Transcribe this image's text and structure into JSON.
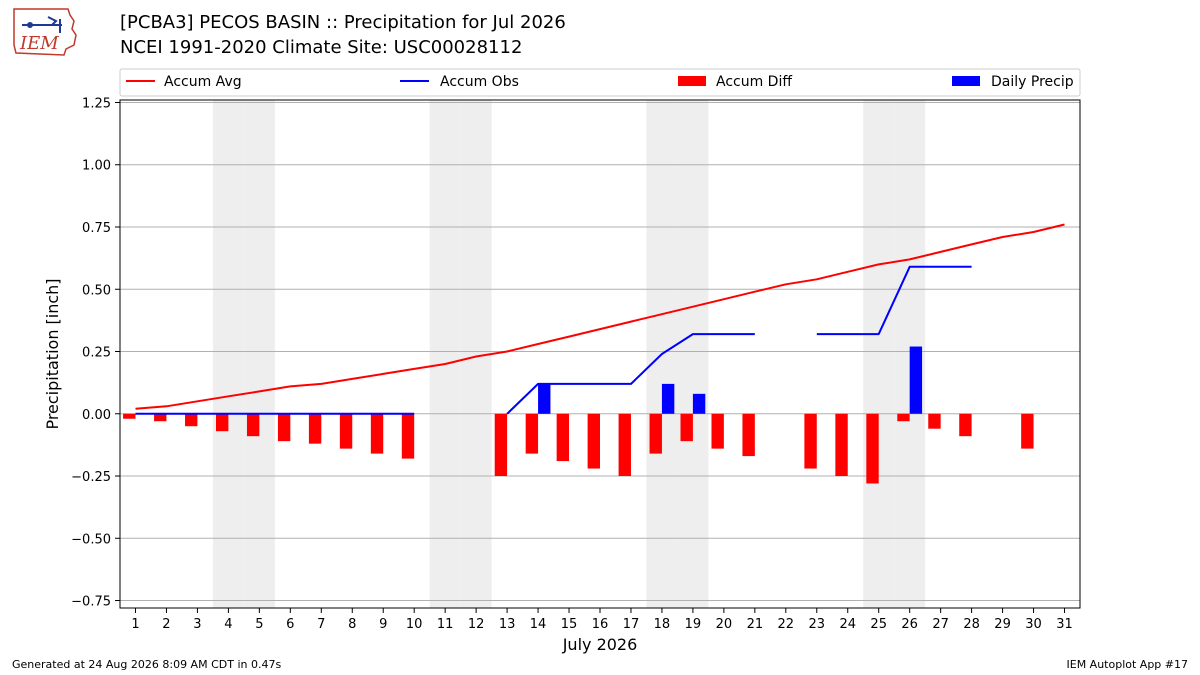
{
  "title": {
    "line1": "[PCBA3] PECOS BASIN :: Precipitation for Jul 2026",
    "line2": "NCEI 1991-2020 Climate Site: USC00028112"
  },
  "logo": {
    "text": "IEM"
  },
  "footer": {
    "left": "Generated at 24 Aug 2026 8:09 AM CDT in 0.47s",
    "right": "IEM Autoplot App #17"
  },
  "colors": {
    "avg": "#ff0000",
    "obs": "#0000ff",
    "diff": "#ff0000",
    "daily": "#0000ff",
    "weekend": "#eeeeee",
    "grid": "#b0b0b0"
  },
  "chart_data": {
    "type": "bar",
    "xlabel": "July 2026",
    "ylabel": "Precipitation [inch]",
    "xlim": [
      0.5,
      31.5
    ],
    "ylim": [
      -0.78,
      1.26
    ],
    "yticks": [
      1.25,
      1.0,
      0.75,
      0.5,
      0.25,
      0.0,
      -0.25,
      -0.5,
      -0.75
    ],
    "ytick_labels": [
      "1.25",
      "1.00",
      "0.75",
      "0.50",
      "0.25",
      "0.00",
      "−0.25",
      "−0.50",
      "−0.75"
    ],
    "days": [
      1,
      2,
      3,
      4,
      5,
      6,
      7,
      8,
      9,
      10,
      11,
      12,
      13,
      14,
      15,
      16,
      17,
      18,
      19,
      20,
      21,
      22,
      23,
      24,
      25,
      26,
      27,
      28,
      29,
      30,
      31
    ],
    "weekend_days": [
      4,
      5,
      11,
      12,
      18,
      19,
      25,
      26
    ],
    "grid": "horizontal",
    "legend_position": "top",
    "series": [
      {
        "name": "Accum Avg",
        "kind": "line",
        "values": [
          0.02,
          0.03,
          0.05,
          0.07,
          0.09,
          0.11,
          0.12,
          0.14,
          0.16,
          0.18,
          0.2,
          0.23,
          0.25,
          0.28,
          0.31,
          0.34,
          0.37,
          0.4,
          0.43,
          0.46,
          0.49,
          0.52,
          0.54,
          0.57,
          0.6,
          0.62,
          0.65,
          0.68,
          0.71,
          0.73,
          0.76
        ]
      },
      {
        "name": "Accum Obs",
        "kind": "line",
        "values": [
          0,
          0,
          0,
          0,
          0,
          0,
          0,
          0,
          0,
          0,
          null,
          null,
          0,
          0.12,
          0.12,
          0.12,
          0.12,
          0.24,
          0.32,
          0.32,
          0.32,
          null,
          0.32,
          0.32,
          0.32,
          0.59,
          0.59,
          0.59,
          null,
          null,
          null
        ]
      },
      {
        "name": "Accum Diff",
        "kind": "bar",
        "values": [
          -0.02,
          -0.03,
          -0.05,
          -0.07,
          -0.09,
          -0.11,
          -0.12,
          -0.14,
          -0.16,
          -0.18,
          null,
          null,
          -0.25,
          -0.16,
          -0.19,
          -0.22,
          -0.25,
          -0.16,
          -0.11,
          -0.14,
          -0.17,
          null,
          -0.22,
          -0.25,
          -0.28,
          -0.03,
          -0.06,
          -0.09,
          null,
          -0.14,
          null
        ]
      },
      {
        "name": "Daily Precip",
        "kind": "bar",
        "values": [
          0,
          0,
          0,
          0,
          0,
          0,
          0,
          0,
          0,
          0,
          null,
          null,
          0,
          0.12,
          0,
          0,
          0,
          0.12,
          0.08,
          0,
          0,
          null,
          0,
          0,
          0,
          0.27,
          0,
          0,
          null,
          null,
          null
        ]
      }
    ]
  }
}
